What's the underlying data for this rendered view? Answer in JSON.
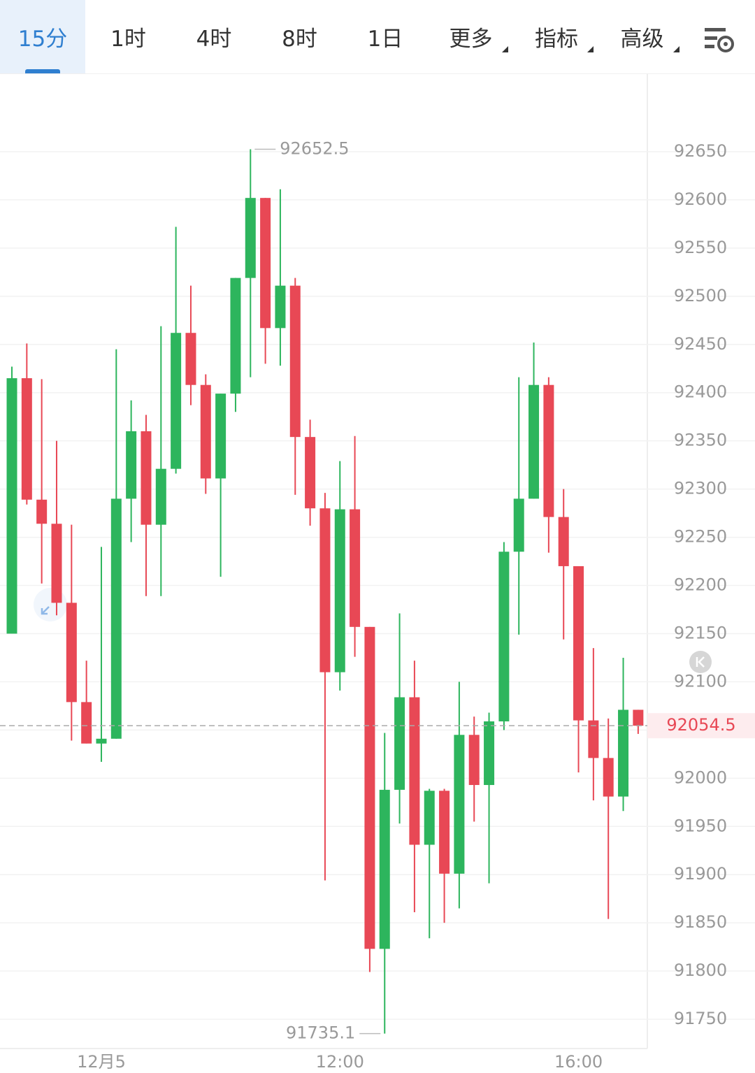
{
  "tabs": [
    "15分",
    "1时",
    "4时",
    "8时",
    "1日",
    "更多",
    "指标",
    "高级"
  ],
  "chart_data": {
    "type": "candlestick",
    "categories": [
      null,
      null,
      null,
      null,
      null,
      null,
      "12月5",
      null,
      null,
      null,
      null,
      null,
      null,
      null,
      null,
      null,
      null,
      null,
      null,
      null,
      null,
      null,
      "12:00",
      null,
      null,
      null,
      null,
      null,
      null,
      null,
      null,
      null,
      null,
      null,
      null,
      null,
      null,
      null,
      "16:00",
      null,
      null,
      null,
      null
    ],
    "open": [
      92150,
      92415,
      92289,
      92264,
      92182,
      92079,
      92036,
      92041,
      92290,
      92360,
      92263,
      92321,
      92462,
      92408,
      92311,
      92399,
      92519,
      92602,
      92467,
      92511,
      92354,
      92280,
      92110,
      92279,
      92157,
      91823,
      91988,
      92084,
      91931,
      91987,
      91901,
      92045,
      91993,
      92059,
      92235,
      92290,
      92408,
      92271,
      92220,
      92060,
      92021,
      91981,
      92071
    ],
    "high": [
      92427,
      92451,
      92414,
      92350,
      92263,
      92122,
      92240,
      92445,
      92392,
      92377,
      92469,
      92572,
      92511,
      92419,
      92399,
      92519,
      92652.5,
      92602,
      92611,
      92519,
      92372,
      92296,
      92329,
      92355,
      92157,
      92047,
      92171,
      92122,
      91989,
      91989,
      92100,
      92064,
      92068,
      92245,
      92416,
      92452,
      92416,
      92300,
      92220,
      92135,
      92062,
      92125,
      92071
    ],
    "low": [
      92150,
      92284,
      92202,
      92169,
      92039,
      92036,
      92017,
      92041,
      92245,
      92189,
      92189,
      92316,
      92387,
      92295,
      92209,
      92380,
      92416,
      92430,
      92428,
      92294,
      92262,
      91894,
      92091,
      92126,
      91799,
      91735.1,
      91953,
      91861,
      91834,
      91850,
      91865,
      91955,
      91891,
      92050,
      92149,
      92290,
      92234,
      92144,
      92006,
      91977,
      91854,
      91966,
      92046
    ],
    "close": [
      92415,
      92289,
      92264,
      92182,
      92079,
      92036,
      92041,
      92290,
      92360,
      92263,
      92321,
      92462,
      92408,
      92311,
      92399,
      92519,
      92602,
      92467,
      92511,
      92354,
      92280,
      92110,
      92279,
      92157,
      91823,
      91988,
      92084,
      91931,
      91987,
      91901,
      92045,
      91993,
      92059,
      92235,
      92290,
      92408,
      92271,
      92220,
      92060,
      92021,
      91981,
      92071,
      92054.5
    ],
    "up_color": "#2db55d",
    "down_color": "#e84855",
    "ylim": [
      91719.6,
      92731.2
    ],
    "yticks": [
      91750,
      91800,
      91850,
      91900,
      91950,
      92000,
      92050,
      92100,
      92150,
      92200,
      92250,
      92300,
      92350,
      92400,
      92450,
      92500,
      92550,
      92600,
      92650
    ],
    "grid": true,
    "max_label": "92652.5",
    "min_label": "91735.1",
    "last_price": 92054.5
  }
}
